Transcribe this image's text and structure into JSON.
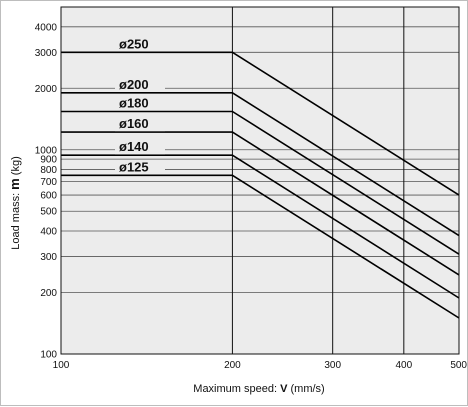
{
  "chart_data": {
    "type": "line",
    "title": "",
    "xlabel_prefix": "Maximum speed: ",
    "xlabel_symbol": "V",
    "xlabel_unit": " (mm/s)",
    "ylabel_prefix": "Load mass: ",
    "ylabel_symbol": "m",
    "ylabel_unit": " (kg)",
    "x_scale": "log",
    "y_scale": "log",
    "xlim": [
      100,
      500
    ],
    "ylim": [
      100,
      5000
    ],
    "grid": true,
    "x_ticks": [
      100,
      200,
      300,
      400,
      500
    ],
    "x_tick_labels": [
      "100",
      "200",
      "300",
      "400",
      "500"
    ],
    "y_ticks": [
      100,
      200,
      300,
      400,
      500,
      600,
      700,
      800,
      900,
      1000,
      2000,
      3000,
      4000
    ],
    "y_tick_labels": [
      "100",
      "200",
      "300",
      "400",
      "500",
      "600",
      "700",
      "800",
      "900",
      "1000",
      "2000",
      "3000",
      "4000"
    ],
    "series": [
      {
        "name": "ø250",
        "x": [
          100,
          200,
          500
        ],
        "y": [
          3000,
          3000,
          600
        ]
      },
      {
        "name": "ø200",
        "x": [
          100,
          200,
          500
        ],
        "y": [
          1900,
          1900,
          380
        ]
      },
      {
        "name": "ø180",
        "x": [
          100,
          200,
          500
        ],
        "y": [
          1540,
          1540,
          308
        ]
      },
      {
        "name": "ø160",
        "x": [
          100,
          200,
          500
        ],
        "y": [
          1220,
          1220,
          244
        ]
      },
      {
        "name": "ø140",
        "x": [
          100,
          200,
          500
        ],
        "y": [
          940,
          940,
          188
        ]
      },
      {
        "name": "ø125",
        "x": [
          100,
          200,
          500
        ],
        "y": [
          750,
          750,
          150
        ]
      }
    ]
  }
}
